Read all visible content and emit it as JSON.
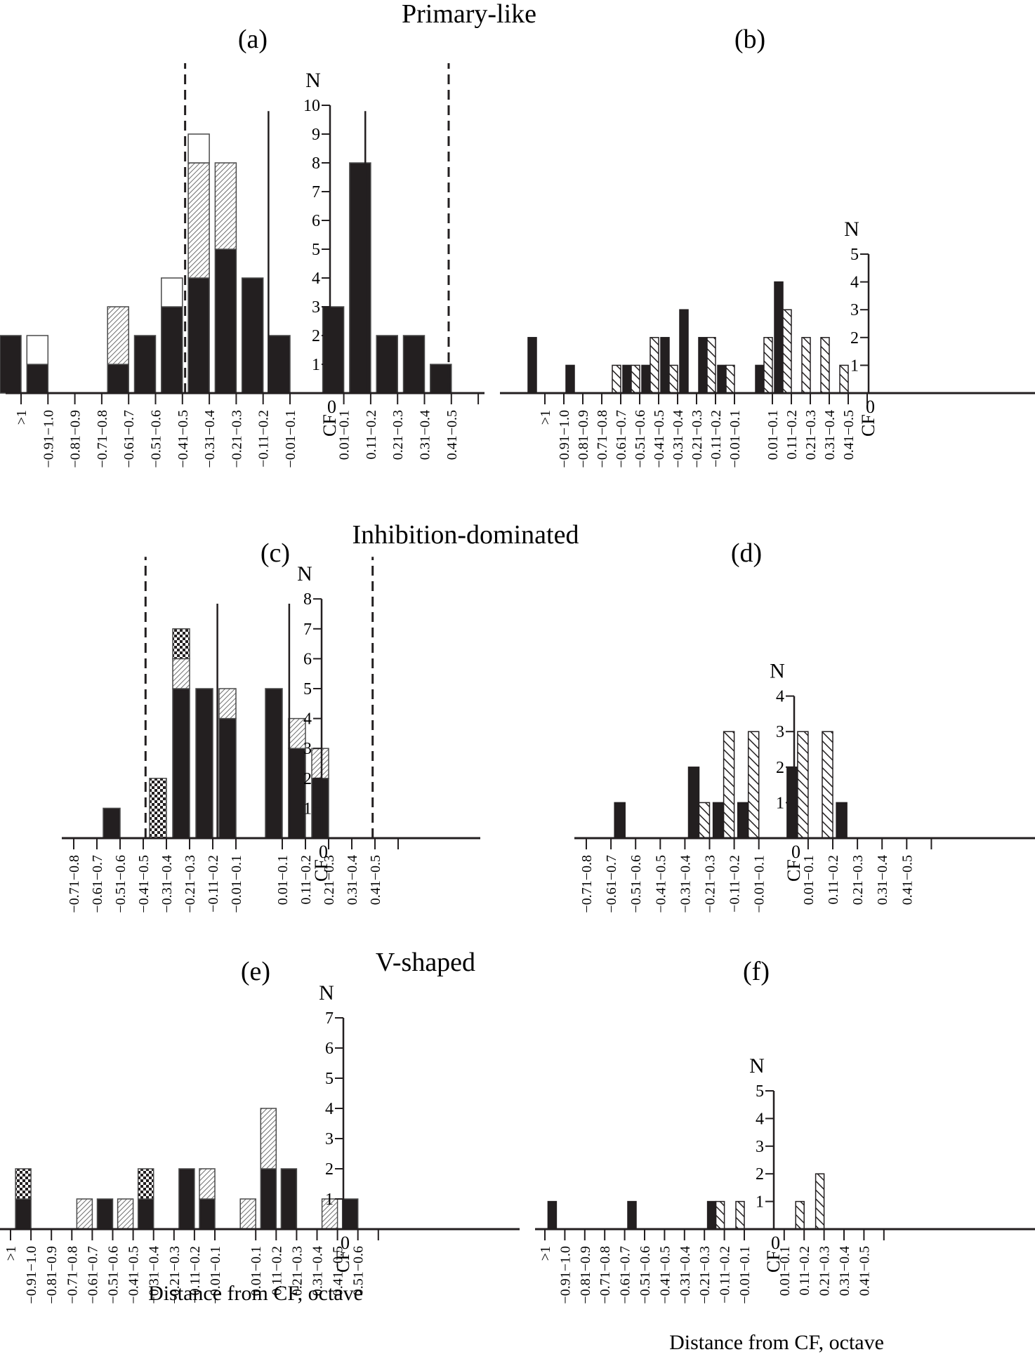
{
  "figure": {
    "section_titles": [
      "Primary-like",
      "Inhibition-dominated",
      "V-shaped"
    ],
    "x_axis_title": "Distance from CF, octave",
    "colors": {
      "solid": "#231f20",
      "hatch_fine": "#7a7a7a",
      "background": "#ffffff"
    }
  },
  "chart_data": [
    {
      "id": "a",
      "type": "bar",
      "stacked": true,
      "panel_label": "(a)",
      "section": "Primary-like",
      "ylabel": "N",
      "cf_label": "CF",
      "zero_label": "0",
      "yticks": [
        1,
        2,
        3,
        4,
        5,
        6,
        7,
        8,
        9,
        10
      ],
      "ylim": [
        0,
        10
      ],
      "categories": [
        ">1",
        "−0.91−1.0",
        "−0.81−0.9",
        "−0.71−0.8",
        "−0.61−0.7",
        "−0.51−0.6",
        "−0.41−0.5",
        "−0.31−0.4",
        "−0.21−0.3",
        "−0.11−0.2",
        "−0.01−0.1",
        "0.01−0.1",
        "0.11−0.2",
        "0.21−0.3",
        "0.31−0.4",
        "0.41−0.5"
      ],
      "series": [
        {
          "name": "solid",
          "pattern": "solid",
          "values": [
            2,
            1,
            0,
            0,
            1,
            2,
            3,
            4,
            5,
            4,
            2,
            3,
            8,
            2,
            2,
            1
          ]
        },
        {
          "name": "fine-hatched",
          "pattern": "fine-hatch",
          "values": [
            0,
            0,
            0,
            0,
            2,
            0,
            0,
            4,
            3,
            0,
            0,
            0,
            0,
            0,
            0,
            0
          ]
        },
        {
          "name": "open",
          "pattern": "open",
          "values": [
            0,
            1,
            0,
            0,
            0,
            0,
            1,
            1,
            0,
            0,
            0,
            0,
            0,
            0,
            0,
            0
          ]
        }
      ],
      "dashed_boundaries_octave": [
        -0.5,
        0.5
      ],
      "solid_markers_octave": [
        -0.2,
        0.2
      ]
    },
    {
      "id": "b",
      "type": "bar",
      "grouped": true,
      "panel_label": "(b)",
      "section": "Primary-like",
      "ylabel": "N",
      "cf_label": "CF",
      "zero_label": "0",
      "yticks": [
        1,
        2,
        3,
        4,
        5
      ],
      "ylim": [
        0,
        5
      ],
      "categories": [
        ">1",
        "−0.91−1.0",
        "−0.81−0.9",
        "−0.71−0.8",
        "−0.61−0.7",
        "−0.51−0.6",
        "−0.41−0.5",
        "−0.31−0.4",
        "−0.21−0.3",
        "−0.11−0.2",
        "−0.01−0.1",
        "0.01−0.1",
        "0.11−0.2",
        "0.21−0.3",
        "0.31−0.4",
        "0.41−0.5"
      ],
      "series": [
        {
          "name": "solid",
          "pattern": "solid",
          "values": [
            2,
            0,
            1,
            0,
            0,
            1,
            1,
            2,
            3,
            2,
            1,
            1,
            4,
            0,
            0,
            0
          ]
        },
        {
          "name": "hatched",
          "pattern": "hatch",
          "values": [
            0,
            0,
            0,
            0,
            1,
            1,
            2,
            1,
            0,
            2,
            1,
            2,
            3,
            2,
            2,
            1
          ]
        }
      ]
    },
    {
      "id": "c",
      "type": "bar",
      "stacked": true,
      "panel_label": "(c)",
      "section": "Inhibition-dominated",
      "ylabel": "N",
      "cf_label": "CF",
      "zero_label": "0",
      "yticks": [
        1,
        2,
        3,
        4,
        5,
        6,
        7,
        8
      ],
      "ylim": [
        0,
        8
      ],
      "categories": [
        "−0.71−0.8",
        "−0.61−0.7",
        "−0.51−0.6",
        "−0.41−0.5",
        "−0.31−0.4",
        "−0.21−0.3",
        "−0.11−0.2",
        "−0.01−0.1",
        "0.01−0.1",
        "0.11−0.2",
        "0.21−0.3",
        "0.31−0.4",
        "0.41−0.5"
      ],
      "series": [
        {
          "name": "solid",
          "pattern": "solid",
          "values": [
            0,
            0,
            1,
            0,
            0,
            5,
            5,
            4,
            5,
            3,
            2,
            0,
            0
          ]
        },
        {
          "name": "fine-hatched",
          "pattern": "fine-hatch",
          "values": [
            0,
            0,
            0,
            0,
            0,
            1,
            0,
            1,
            0,
            1,
            1,
            0,
            0
          ]
        },
        {
          "name": "checkered",
          "pattern": "checker",
          "values": [
            0,
            0,
            0,
            0,
            2,
            1,
            0,
            0,
            0,
            0,
            0,
            0,
            0
          ]
        }
      ],
      "dashed_boundaries_octave": [
        -0.5,
        0.5
      ],
      "solid_markers_octave": [
        -0.2,
        0.15
      ]
    },
    {
      "id": "d",
      "type": "bar",
      "grouped": true,
      "panel_label": "(d)",
      "section": "Inhibition-dominated",
      "ylabel": "N",
      "cf_label": "CF",
      "zero_label": "0",
      "yticks": [
        1,
        2,
        3,
        4
      ],
      "ylim": [
        0,
        4
      ],
      "categories": [
        "−0.71−0.8",
        "−0.61−0.7",
        "−0.51−0.6",
        "−0.41−0.5",
        "−0.31−0.4",
        "−0.21−0.3",
        "−0.11−0.2",
        "−0.01−0.1",
        "0.01−0.1",
        "0.11−0.2",
        "0.21−0.3",
        "0.31−0.4",
        "0.41−0.5"
      ],
      "series": [
        {
          "name": "solid",
          "pattern": "solid",
          "values": [
            0,
            0,
            1,
            0,
            0,
            2,
            1,
            1,
            2,
            0,
            1,
            0,
            0
          ]
        },
        {
          "name": "hatched",
          "pattern": "hatch",
          "values": [
            0,
            0,
            0,
            0,
            0,
            1,
            3,
            3,
            3,
            3,
            0,
            0,
            0
          ]
        }
      ]
    },
    {
      "id": "e",
      "type": "bar",
      "stacked": true,
      "panel_label": "(e)",
      "section": "V-shaped",
      "ylabel": "N",
      "cf_label": "CF",
      "zero_label": "0",
      "yticks": [
        1,
        2,
        3,
        4,
        5,
        6,
        7
      ],
      "ylim": [
        0,
        7
      ],
      "xlabel": "Distance from CF, octave",
      "categories": [
        ">1",
        "−0.91−1.0",
        "−0.81−0.9",
        "−0.71−0.8",
        "−0.61−0.7",
        "−0.51−0.6",
        "−0.41−0.5",
        "−0.31−0.4",
        "−0.21−0.3",
        "−0.11−0.2",
        "−0.01−0.1",
        "0.01−0.1",
        "0.11−0.2",
        "0.21−0.3",
        "0.31−0.4",
        "0.41−0.5",
        "0.51−0.6"
      ],
      "series": [
        {
          "name": "solid",
          "pattern": "solid",
          "values": [
            0,
            1,
            0,
            0,
            0,
            1,
            0,
            1,
            0,
            2,
            1,
            0,
            2,
            2,
            0,
            0,
            1
          ]
        },
        {
          "name": "fine-hatched",
          "pattern": "fine-hatch",
          "values": [
            0,
            0,
            0,
            0,
            1,
            0,
            1,
            0,
            0,
            0,
            1,
            1,
            2,
            0,
            0,
            1,
            0
          ]
        },
        {
          "name": "checkered",
          "pattern": "checker",
          "values": [
            0,
            1,
            0,
            0,
            0,
            0,
            0,
            1,
            0,
            0,
            0,
            0,
            0,
            0,
            0,
            0,
            0
          ]
        }
      ]
    },
    {
      "id": "f",
      "type": "bar",
      "grouped": true,
      "panel_label": "(f)",
      "section": "V-shaped",
      "ylabel": "N",
      "cf_label": "CF",
      "zero_label": "0",
      "yticks": [
        1,
        2,
        3,
        4,
        5
      ],
      "ylim": [
        0,
        5
      ],
      "xlabel": "Distance from CF, octave",
      "categories": [
        ">1",
        "−0.91−1.0",
        "−0.81−0.9",
        "−0.71−0.8",
        "−0.61−0.7",
        "−0.51−0.6",
        "−0.41−0.5",
        "−0.31−0.4",
        "−0.21−0.3",
        "−0.11−0.2",
        "−0.01−0.1",
        "0.01−0.1",
        "0.11−0.2",
        "0.21−0.3",
        "0.31−0.4",
        "0.41−0.5"
      ],
      "series": [
        {
          "name": "solid",
          "pattern": "solid",
          "values": [
            0,
            1,
            0,
            0,
            0,
            1,
            0,
            0,
            0,
            1,
            0,
            0,
            0,
            0,
            0,
            0
          ]
        },
        {
          "name": "hatched",
          "pattern": "hatch",
          "values": [
            0,
            0,
            0,
            0,
            0,
            0,
            0,
            0,
            0,
            1,
            1,
            0,
            1,
            2,
            0,
            0
          ]
        }
      ]
    }
  ]
}
